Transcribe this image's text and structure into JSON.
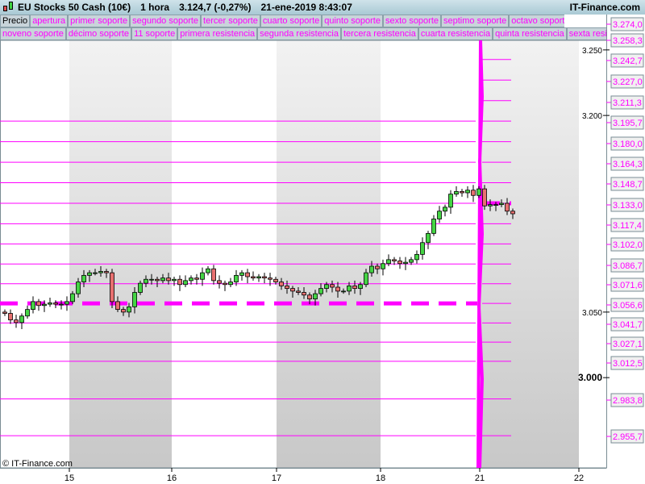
{
  "header": {
    "instrument": "EU Stocks 50 Cash (10€)",
    "timeframe": "1 hora",
    "price": "3.124,7 (-0,27%)",
    "datetime": "21-ene-2019 8:43:07",
    "brand": "IT-Finance.com"
  },
  "tabs_row1": [
    "Precio",
    "apertura",
    "primer soporte",
    "segundo soporte",
    "tercer soporte",
    "cuarto soporte",
    "quinto soporte",
    "sexto soporte",
    "septimo soporte",
    "octavo soporte"
  ],
  "tabs_row2": [
    "noveno soporte",
    "décimo soporte",
    "11 soporte",
    "primera resistencia",
    "segunda resistencia",
    "tercera resistencia",
    "cuarta resistencia",
    "quinta resistencia",
    "sexta resistencia"
  ],
  "copyright": "© IT-Finance.com",
  "colors": {
    "level": "#ff00ff",
    "up": "#44d444",
    "down": "#e87070"
  },
  "chart_data": {
    "type": "candlestick",
    "x_tick_labels": [
      "15",
      "16",
      "17",
      "18",
      "21",
      "22"
    ],
    "y_tick_labels": [
      "3.250",
      "3.200",
      "3.050",
      "3.000"
    ],
    "y_ticks": [
      3250,
      3200,
      3050,
      3000
    ],
    "level_labels": [
      "3.274,0",
      "3.258,3",
      "3.242,7",
      "3.227,0",
      "3.211,3",
      "3.195,7",
      "3.180,0",
      "3.164,3",
      "3.148,7",
      "3.133,0",
      "3.117,4",
      "3.102,0",
      "3.086,7",
      "3.071,6",
      "3.056,6",
      "3.041,7",
      "3.027,1",
      "3.012,5",
      "2.983,8",
      "2.955,7"
    ],
    "levels": [
      3274.0,
      3258.3,
      3242.7,
      3227.0,
      3211.3,
      3195.7,
      3180.0,
      3164.3,
      3148.7,
      3133.0,
      3117.4,
      3102.0,
      3086.7,
      3071.6,
      3056.6,
      3041.7,
      3027.1,
      3012.5,
      2983.8,
      2955.7
    ],
    "opening_level": 3056.6,
    "closes": [
      3049,
      3044,
      3042,
      3047,
      3052,
      3058,
      3055,
      3056,
      3057,
      3056,
      3056,
      3058,
      3064,
      3073,
      3078,
      3080,
      3080,
      3081,
      3080,
      3058,
      3052,
      3050,
      3054,
      3065,
      3072,
      3075,
      3075,
      3074,
      3076,
      3074,
      3075,
      3071,
      3074,
      3076,
      3075,
      3080,
      3083,
      3074,
      3072,
      3071,
      3073,
      3078,
      3080,
      3077,
      3076,
      3077,
      3076,
      3075,
      3073,
      3070,
      3068,
      3066,
      3065,
      3063,
      3060,
      3064,
      3068,
      3071,
      3069,
      3066,
      3066,
      3070,
      3068,
      3071,
      3080,
      3085,
      3083,
      3087,
      3090,
      3089,
      3087,
      3088,
      3090,
      3094,
      3103,
      3110,
      3121,
      3127,
      3130,
      3140,
      3142,
      3141,
      3143,
      3139,
      3144,
      3131,
      3132,
      3132,
      3133,
      3127,
      3125
    ]
  }
}
